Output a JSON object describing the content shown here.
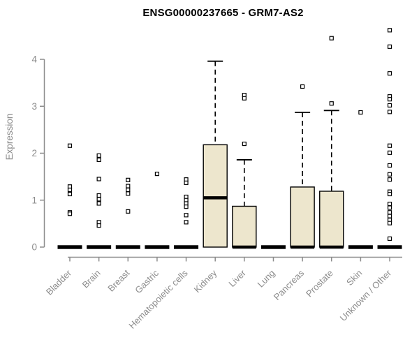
{
  "chart_data": {
    "type": "boxplot",
    "title": "ENSG00000237665 - GRM7-AS2",
    "ylabel": "Expression",
    "xlabel": "",
    "yticks": [
      0,
      1,
      2,
      3,
      4
    ],
    "ylim": [
      0,
      4.7
    ],
    "grid": false,
    "legend": null,
    "categories": [
      "Bladder",
      "Brain",
      "Breast",
      "Gastric",
      "Hematopoietic cells",
      "Kidney",
      "Liver",
      "Lung",
      "Pancreas",
      "Prostate",
      "Skin",
      "Unknown / Other"
    ],
    "boxes": [
      {
        "category": "Bladder",
        "q1": 0,
        "median": 0,
        "q3": 0,
        "whisker_low": 0,
        "whisker_high": 0,
        "outliers": [
          2.16,
          1.29,
          1.22,
          1.13,
          0.74,
          0.71
        ]
      },
      {
        "category": "Brain",
        "q1": 0,
        "median": 0,
        "q3": 0,
        "whisker_low": 0,
        "whisker_high": 0,
        "outliers": [
          1.95,
          1.86,
          1.45,
          1.1,
          1.02,
          0.93,
          0.53,
          0.46
        ]
      },
      {
        "category": "Breast",
        "q1": 0,
        "median": 0,
        "q3": 0,
        "whisker_low": 0,
        "whisker_high": 0,
        "outliers": [
          1.43,
          1.3,
          1.22,
          1.14,
          0.76
        ]
      },
      {
        "category": "Gastric",
        "q1": 0,
        "median": 0,
        "q3": 0,
        "whisker_low": 0,
        "whisker_high": 0,
        "outliers": [
          1.56
        ]
      },
      {
        "category": "Hematopoietic cells",
        "q1": 0,
        "median": 0,
        "q3": 0,
        "whisker_low": 0,
        "whisker_high": 0,
        "outliers": [
          1.44,
          1.37,
          1.07,
          1.0,
          0.93,
          0.86,
          0.68,
          0.53
        ]
      },
      {
        "category": "Kidney",
        "q1": 0,
        "median": 1.05,
        "q3": 2.18,
        "whisker_low": 0,
        "whisker_high": 3.96,
        "outliers": []
      },
      {
        "category": "Liver",
        "q1": 0,
        "median": 0,
        "q3": 0.87,
        "whisker_low": 0,
        "whisker_high": 1.86,
        "outliers": [
          3.24,
          3.17,
          2.2
        ]
      },
      {
        "category": "Lung",
        "q1": 0,
        "median": 0,
        "q3": 0,
        "whisker_low": 0,
        "whisker_high": 0,
        "outliers": []
      },
      {
        "category": "Pancreas",
        "q1": 0,
        "median": 0,
        "q3": 1.28,
        "whisker_low": 0,
        "whisker_high": 2.87,
        "outliers": [
          3.42
        ]
      },
      {
        "category": "Prostate",
        "q1": 0,
        "median": 0,
        "q3": 1.19,
        "whisker_low": 0,
        "whisker_high": 2.91,
        "outliers": [
          4.45,
          3.06
        ]
      },
      {
        "category": "Skin",
        "q1": 0,
        "median": 0,
        "q3": 0,
        "whisker_low": 0,
        "whisker_high": 0,
        "outliers": [
          2.87
        ]
      },
      {
        "category": "Unknown / Other",
        "q1": 0,
        "median": 0,
        "q3": 0,
        "whisker_low": 0,
        "whisker_high": 0,
        "outliers": [
          4.62,
          4.27,
          3.7,
          3.21,
          3.15,
          3.02,
          2.88,
          2.16,
          2.01,
          1.74,
          1.55,
          1.44,
          1.18,
          1.13,
          0.92,
          0.84,
          0.74,
          0.66,
          0.58,
          0.51,
          0.18
        ]
      }
    ],
    "colors": {
      "box_fill": "#ede6cd",
      "box_stroke": "#000000",
      "median": "#000000",
      "whisker": "#000000",
      "outlier_stroke": "#000000",
      "outlier_fill": "#ffffff",
      "axis": "#8c8c8c",
      "tick_label": "#8c8c8c",
      "title": "#000000"
    }
  }
}
